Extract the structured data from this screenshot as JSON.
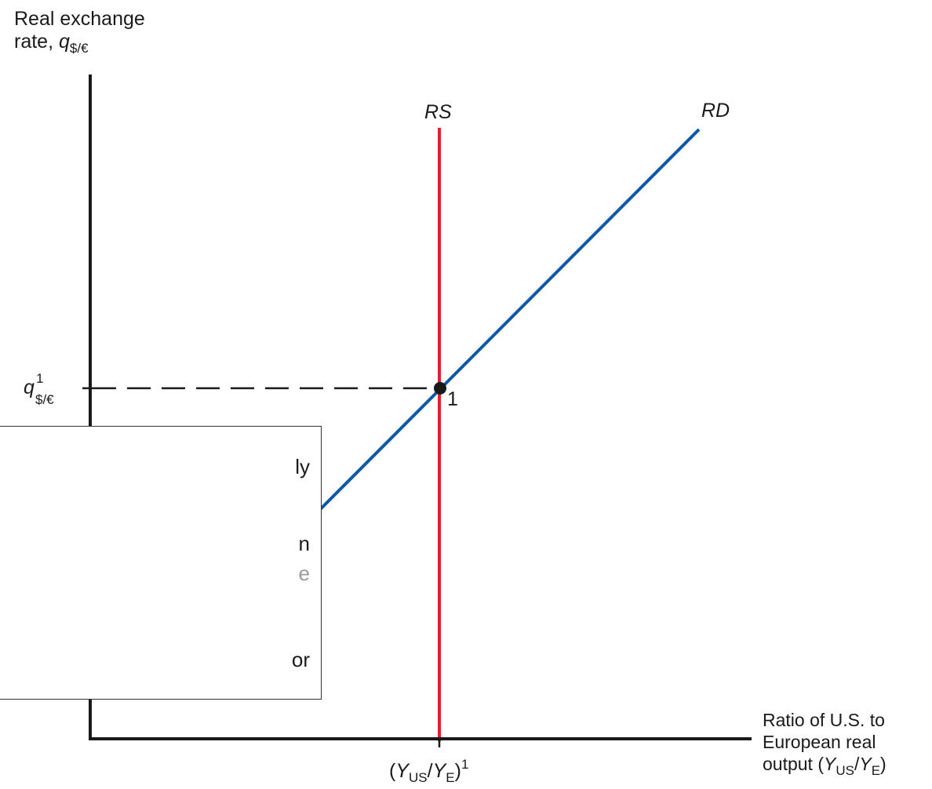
{
  "y_axis_title": {
    "line1": "Real exchange",
    "line2_prefix": "rate, ",
    "symbol": "q",
    "subscript": "$/€"
  },
  "x_axis_title": {
    "line1": "Ratio of U.S. to",
    "line2": "European real",
    "line3_prefix": "output (",
    "y1": "Y",
    "sub1": "US",
    "slash": "/",
    "y2": "Y",
    "sub2": "E",
    "suffix": ")"
  },
  "y_tick": {
    "symbol": "q",
    "superscript": "1",
    "subscript": "$/€"
  },
  "x_tick": {
    "open": "(",
    "y1": "Y",
    "sub1": "US",
    "slash": "/",
    "y2": "Y",
    "sub2": "E",
    "close": ")",
    "superscript": "1"
  },
  "curves": {
    "rs": {
      "label": "RS",
      "color": "#e3202e"
    },
    "rd": {
      "label": "RD",
      "color": "#0e58a8"
    }
  },
  "equilibrium_label": "1",
  "axis_color": "#1a1a1a",
  "overlay_box": {
    "lines": [
      "ly",
      "n",
      "e",
      "or"
    ]
  }
}
